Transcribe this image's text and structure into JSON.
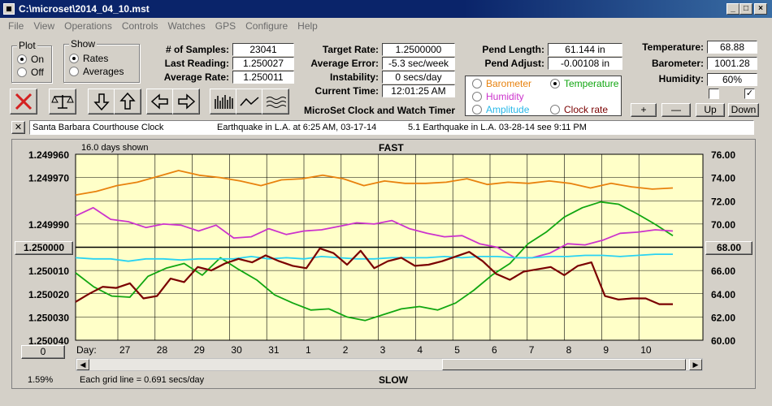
{
  "window": {
    "title": "C:\\microset\\2014_04_10.mst"
  },
  "menu": [
    "File",
    "View",
    "Operations",
    "Controls",
    "Watches",
    "GPS",
    "Configure",
    "Help"
  ],
  "plot": {
    "label": "Plot",
    "on": "On",
    "off": "Off"
  },
  "show": {
    "label": "Show",
    "rates": "Rates",
    "averages": "Averages"
  },
  "stats": {
    "samples_label": "# of Samples:",
    "samples": "23041",
    "last_label": "Last Reading:",
    "last": "1.250027",
    "avg_label": "Average Rate:",
    "avg": "1.250011"
  },
  "rates": {
    "target_label": "Target Rate:",
    "target": "1.2500000",
    "error_label": "Average Error:",
    "error": "-5.3 sec/week",
    "instab_label": "Instability:",
    "instab": "0 secs/day",
    "time_label": "Current Time:",
    "time": "12:01:25 AM"
  },
  "pend": {
    "length_label": "Pend Length:",
    "length": "61.144 in",
    "adjust_label": "Pend Adjust:",
    "adjust": "-0.00108 in"
  },
  "env": {
    "temp_label": "Temperature:",
    "temp": "68.88",
    "baro_label": "Barometer:",
    "baro": "1001.28",
    "hum_label": "Humidity:",
    "hum": "60%"
  },
  "sensors": {
    "barometer": "Barometer",
    "temperature": "Temperature",
    "humidity": "Humidity",
    "amplitude": "Amplitude",
    "clock_rate": "Clock rate"
  },
  "colors": {
    "barometer": "#e8820e",
    "temperature": "#11a611",
    "humidity": "#cc33cc",
    "amplitude": "#29d3f2",
    "clock_rate": "#7a0000",
    "plot_bg": "#ffffc8",
    "close_red": "#d42020"
  },
  "scale_buttons": {
    "plus": "+",
    "minus": "—",
    "up": "Up",
    "down": "Down"
  },
  "checkboxes": {
    "left": "",
    "right": "✓"
  },
  "app_title": "MicroSet Clock and Watch Timer",
  "notes": {
    "close": "✕",
    "clock": "Santa Barbara Courthouse Clock",
    "note1": "Earthquake in L.A. at 6:25 AM, 03-17-14",
    "note2": "5.1 Earthquake in L.A. 03-28-14  see 9:11 PM"
  },
  "graph": {
    "days_shown": "16.0 days shown",
    "top_label": "FAST",
    "bottom_label": "SLOW",
    "grid_note": "Each grid line = 0.691 secs/day",
    "percent": "1.59%",
    "day_label": "Day:",
    "left_center_button": "1.250000",
    "right_center_button": "68.00",
    "left_bottom_button": "0"
  },
  "chart_data": {
    "type": "line",
    "title": "FAST",
    "xlabel": "Day:",
    "x_ticks": [
      "27",
      "28",
      "29",
      "30",
      "31",
      "1",
      "2",
      "3",
      "4",
      "5",
      "6",
      "7",
      "8",
      "9",
      "10"
    ],
    "xlim": [
      26,
      10.8
    ],
    "y_left_ticks": [
      "1.249960",
      "1.249970",
      "1.249990",
      "1.250000",
      "1.250010",
      "1.250020",
      "1.250030",
      "1.250040"
    ],
    "y_right_ticks": [
      "76.00",
      "74.00",
      "72.00",
      "70.00",
      "68.00",
      "66.00",
      "64.00",
      "62.00",
      "60.00"
    ],
    "ylim_right": [
      60,
      76
    ],
    "series": [
      {
        "name": "Barometer",
        "color": "#e8820e",
        "y": [
          72.5,
          72.8,
          73.3,
          73.6,
          74.1,
          74.6,
          74.2,
          74.0,
          73.7,
          73.3,
          73.8,
          73.9,
          74.2,
          73.9,
          73.3,
          73.7,
          73.5,
          73.5,
          73.6,
          73.9,
          73.4,
          73.6,
          73.5,
          73.7,
          73.5,
          73.1,
          73.5,
          73.2,
          73.0,
          73.1
        ]
      },
      {
        "name": "Temperature",
        "color": "#11a611",
        "y": [
          65.8,
          64.6,
          63.8,
          63.7,
          65.5,
          66.2,
          66.6,
          65.6,
          67.1,
          66.1,
          65.2,
          63.9,
          63.2,
          62.6,
          62.7,
          62.0,
          61.7,
          62.2,
          62.7,
          62.9,
          62.6,
          63.2,
          64.3,
          65.6,
          66.6,
          68.3,
          69.3,
          70.6,
          71.4,
          71.9,
          71.7,
          70.9,
          70.0,
          69.0
        ]
      },
      {
        "name": "Humidity",
        "color": "#cc33cc",
        "y": [
          70.7,
          71.4,
          70.4,
          70.2,
          69.7,
          70.0,
          69.9,
          69.4,
          69.9,
          68.8,
          68.9,
          69.6,
          69.1,
          69.4,
          69.5,
          69.8,
          70.1,
          70.0,
          70.3,
          69.6,
          69.2,
          68.9,
          69.0,
          68.3,
          68.0,
          67.1,
          67.1,
          67.5,
          68.3,
          68.2,
          68.6,
          69.2,
          69.3,
          69.5,
          69.4
        ]
      },
      {
        "name": "Amplitude",
        "color": "#29d3f2",
        "y": [
          67.1,
          67.0,
          67.0,
          66.8,
          67.0,
          67.0,
          66.9,
          67.0,
          67.0,
          67.0,
          67.2,
          67.0,
          67.1,
          67.0,
          67.2,
          67.1,
          67.0,
          67.0,
          67.1,
          67.1,
          67.1,
          67.2,
          67.1,
          67.2,
          67.2,
          67.1,
          67.1,
          67.2,
          67.2,
          67.3,
          67.3,
          67.2,
          67.3,
          67.4,
          67.4
        ]
      },
      {
        "name": "Clock rate",
        "color": "#7a0000",
        "y": [
          63.3,
          64.0,
          64.6,
          64.5,
          64.9,
          63.6,
          63.8,
          65.3,
          65.0,
          66.3,
          66.0,
          66.6,
          67.0,
          66.7,
          67.3,
          66.8,
          66.4,
          66.2,
          67.9,
          67.5,
          66.5,
          67.7,
          66.2,
          66.8,
          67.1,
          66.4,
          66.5,
          66.8,
          67.2,
          67.6,
          66.8,
          65.7,
          65.2,
          65.9,
          66.1,
          66.3,
          65.6,
          66.4,
          66.7,
          63.8,
          63.5,
          63.6,
          63.6,
          63.1,
          63.1
        ]
      }
    ]
  }
}
